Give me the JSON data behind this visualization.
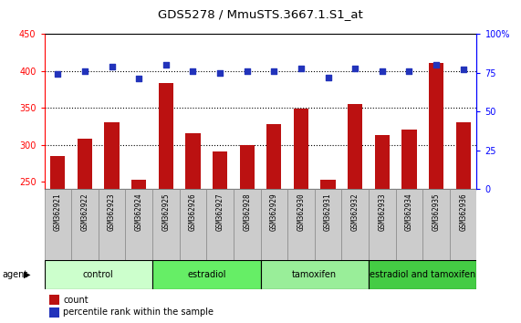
{
  "title": "GDS5278 / MmuSTS.3667.1.S1_at",
  "samples": [
    "GSM362921",
    "GSM362922",
    "GSM362923",
    "GSM362924",
    "GSM362925",
    "GSM362926",
    "GSM362927",
    "GSM362928",
    "GSM362929",
    "GSM362930",
    "GSM362931",
    "GSM362932",
    "GSM362933",
    "GSM362934",
    "GSM362935",
    "GSM362936"
  ],
  "count_values": [
    284,
    308,
    330,
    253,
    383,
    315,
    291,
    300,
    328,
    349,
    253,
    355,
    313,
    321,
    411,
    330
  ],
  "percentile_values": [
    74,
    76,
    79,
    71,
    80,
    76,
    75,
    76,
    76,
    78,
    72,
    78,
    76,
    76,
    80,
    77
  ],
  "groups": [
    {
      "label": "control",
      "start": 0,
      "end": 3,
      "color": "#ccffcc"
    },
    {
      "label": "estradiol",
      "start": 4,
      "end": 7,
      "color": "#66ee66"
    },
    {
      "label": "tamoxifen",
      "start": 8,
      "end": 11,
      "color": "#99ee99"
    },
    {
      "label": "estradiol and tamoxifen",
      "start": 12,
      "end": 15,
      "color": "#44cc44"
    }
  ],
  "ylim_left": [
    240,
    450
  ],
  "ylim_right": [
    0,
    100
  ],
  "yticks_left": [
    250,
    300,
    350,
    400,
    450
  ],
  "yticks_right": [
    0,
    25,
    50,
    75,
    100
  ],
  "bar_color": "#bb1111",
  "dot_color": "#2233bb",
  "background_color": "#ffffff",
  "count_label": "count",
  "percentile_label": "percentile rank within the sample",
  "agent_label": "agent",
  "bar_width": 0.55,
  "dot_size": 22,
  "tick_label_fontsize": 5.5,
  "axis_tick_fontsize": 7,
  "title_fontsize": 9.5,
  "group_fontsize": 7,
  "legend_fontsize": 7,
  "sample_col_color": "#cccccc",
  "sample_col_border": "#888888"
}
